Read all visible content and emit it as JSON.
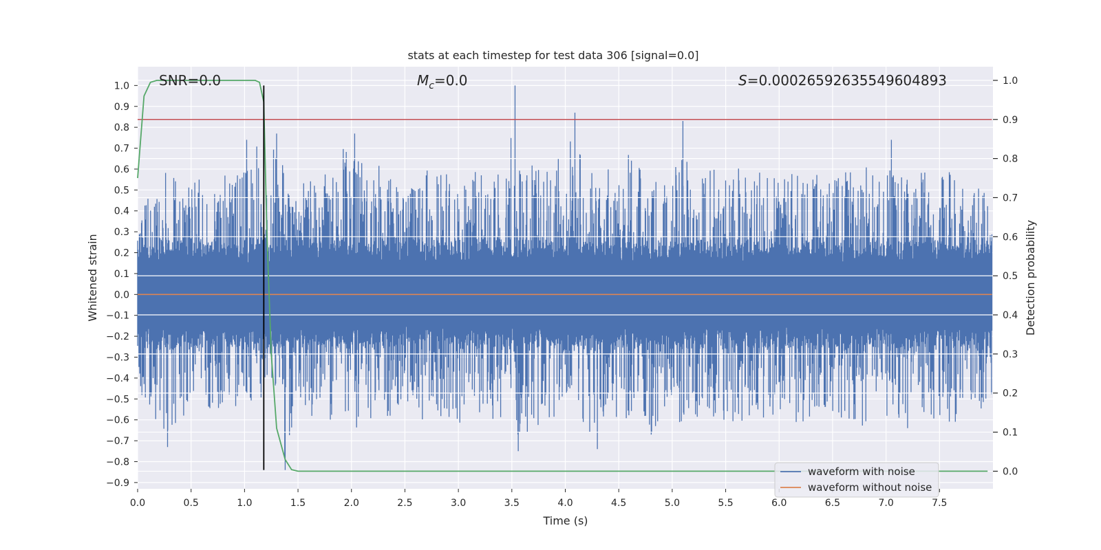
{
  "chart_data": {
    "type": "line",
    "title": "stats at each timestep for test data 306 [signal=0.0]",
    "xlabel": "Time (s)",
    "ylabel_left": "Whitened strain",
    "ylabel_right": "Detection probability",
    "xlim": [
      0.0,
      8.0
    ],
    "ylim_left": [
      -0.93,
      1.09
    ],
    "ylim_right": [
      -0.045,
      1.035
    ],
    "x_ticks": [
      "0.0",
      "0.5",
      "1.0",
      "1.5",
      "2.0",
      "2.5",
      "3.0",
      "3.5",
      "4.0",
      "4.5",
      "5.0",
      "5.5",
      "6.0",
      "6.5",
      "7.0",
      "7.5"
    ],
    "y_ticks_left": [
      "-0.9",
      "-0.8",
      "-0.7",
      "-0.6",
      "-0.5",
      "-0.4",
      "-0.3",
      "-0.2",
      "-0.1",
      "0.0",
      "0.1",
      "0.2",
      "0.3",
      "0.4",
      "0.5",
      "0.6",
      "0.7",
      "0.8",
      "0.9",
      "1.0"
    ],
    "y_ticks_right": [
      "0.0",
      "0.1",
      "0.2",
      "0.3",
      "0.4",
      "0.5",
      "0.6",
      "0.7",
      "0.8",
      "0.9",
      "1.0"
    ],
    "grid": true,
    "legend_position": "bottom-right",
    "annotations": {
      "snr": "SNR=0.0",
      "mc_symbol": "M",
      "mc_subscript": "c",
      "mc_value": "=0.0",
      "s_symbol": "S",
      "s_value": "=0.00026592635549604893"
    },
    "colors": {
      "noise": "#4c72b0",
      "clean": "#dd8452",
      "probability": "#55a868",
      "threshold": "#c44e52",
      "marker": "#000000",
      "background": "#eaeaf2",
      "grid": "#ffffff"
    },
    "series": [
      {
        "name": "waveform with noise",
        "axis": "left",
        "envelope": {
          "x": [
            0.0,
            0.1,
            0.2,
            0.3,
            0.4,
            0.5,
            0.6,
            0.7,
            0.8,
            0.9,
            1.0,
            1.1,
            1.2,
            1.3,
            1.4,
            1.5,
            1.6,
            1.7,
            1.8,
            1.9,
            2.0,
            2.1,
            2.2,
            2.3,
            2.4,
            2.5,
            2.6,
            2.7,
            2.8,
            2.9,
            3.0,
            3.1,
            3.2,
            3.3,
            3.4,
            3.5,
            3.6,
            3.7,
            3.8,
            3.9,
            4.0,
            4.1,
            4.2,
            4.3,
            4.4,
            4.5,
            4.6,
            4.7,
            4.8,
            4.9,
            5.0,
            5.1,
            5.2,
            5.3,
            5.4,
            5.5,
            5.6,
            5.7,
            5.8,
            5.9,
            6.0,
            6.1,
            6.2,
            6.3,
            6.4,
            6.5,
            6.6,
            6.7,
            6.8,
            6.9,
            7.0,
            7.1,
            7.2,
            7.3,
            7.4,
            7.5,
            7.6,
            7.7,
            7.8,
            7.9,
            8.0
          ],
          "max": [
            0.32,
            0.48,
            0.55,
            0.62,
            0.55,
            0.58,
            0.6,
            0.7,
            0.62,
            0.58,
            0.6,
            0.74,
            0.6,
            0.77,
            0.5,
            0.52,
            0.57,
            0.6,
            0.58,
            0.7,
            0.77,
            0.63,
            0.66,
            0.6,
            0.6,
            0.55,
            0.6,
            0.6,
            0.58,
            0.6,
            0.58,
            0.6,
            0.65,
            0.58,
            0.62,
            1.0,
            0.64,
            0.7,
            0.6,
            0.68,
            0.62,
            0.87,
            0.66,
            0.6,
            0.62,
            0.6,
            0.68,
            0.6,
            0.58,
            0.6,
            0.55,
            0.83,
            0.58,
            0.6,
            0.62,
            0.55,
            0.62,
            0.6,
            0.58,
            0.6,
            0.58,
            0.6,
            0.58,
            0.6,
            0.58,
            0.55,
            0.6,
            0.58,
            0.62,
            0.6,
            0.6,
            0.6,
            0.56,
            0.6,
            0.58,
            0.56,
            0.6,
            0.58,
            0.5,
            0.55,
            0.45
          ],
          "min": [
            -0.46,
            -0.55,
            -0.62,
            -0.73,
            -0.6,
            -0.55,
            -0.62,
            -0.6,
            -0.55,
            -0.6,
            -0.58,
            -0.55,
            -0.48,
            -0.6,
            -0.84,
            -0.6,
            -0.62,
            -0.6,
            -0.65,
            -0.6,
            -0.6,
            -0.7,
            -0.6,
            -0.58,
            -0.6,
            -0.55,
            -0.6,
            -0.6,
            -0.58,
            -0.6,
            -0.62,
            -0.6,
            -0.6,
            -0.62,
            -0.6,
            -0.6,
            -0.75,
            -0.72,
            -0.65,
            -0.6,
            -0.62,
            -0.6,
            -0.68,
            -0.6,
            -0.62,
            -0.58,
            -0.6,
            -0.6,
            -0.72,
            -0.6,
            -0.6,
            -0.65,
            -0.6,
            -0.62,
            -0.6,
            -0.6,
            -0.62,
            -0.6,
            -0.62,
            -0.6,
            -0.6,
            -0.6,
            -0.62,
            -0.6,
            -0.6,
            -0.6,
            -0.62,
            -0.6,
            -0.65,
            -0.58,
            -0.6,
            -0.6,
            -0.65,
            -0.62,
            -0.6,
            -0.6,
            -0.62,
            -0.6,
            -0.6,
            -0.55,
            -0.5
          ],
          "spikes": [
            {
              "x": 0.28,
              "min": -0.73
            },
            {
              "x": 1.02,
              "max": 0.74
            },
            {
              "x": 1.3,
              "max": 0.77
            },
            {
              "x": 1.38,
              "min": -0.84
            },
            {
              "x": 2.03,
              "max": 0.77
            },
            {
              "x": 3.53,
              "max": 1.0
            },
            {
              "x": 3.56,
              "min": -0.75
            },
            {
              "x": 4.09,
              "max": 0.87
            },
            {
              "x": 4.3,
              "min": -0.74
            },
            {
              "x": 5.1,
              "max": 0.83
            },
            {
              "x": 7.05,
              "max": 0.74
            }
          ]
        }
      },
      {
        "name": "waveform without noise",
        "axis": "left",
        "x": [
          0.0,
          8.0
        ],
        "y": [
          0.0,
          0.0
        ]
      },
      {
        "axis": "right",
        "x": [
          0.0,
          0.06,
          0.12,
          0.18,
          0.3,
          0.5,
          0.8,
          1.0,
          1.1,
          1.14,
          1.18,
          1.21,
          1.25,
          1.3,
          1.38,
          1.44,
          1.5,
          1.6,
          2.0,
          3.0,
          4.0,
          5.0,
          6.0,
          7.0,
          7.95
        ],
        "y": [
          0.75,
          0.96,
          0.995,
          1.0,
          1.0,
          1.0,
          1.0,
          1.0,
          1.0,
          0.995,
          0.945,
          0.6,
          0.3,
          0.11,
          0.03,
          0.004,
          0.0,
          0.0,
          0.0,
          0.0,
          0.0,
          0.0,
          0.0,
          0.0,
          0.0
        ]
      },
      {
        "axis": "right",
        "x": [
          0.0,
          8.0
        ],
        "y": [
          0.9,
          0.9
        ]
      },
      {
        "axis": "left",
        "vertical_line_x": 1.18,
        "y_range": [
          -0.84,
          1.0
        ]
      }
    ]
  }
}
